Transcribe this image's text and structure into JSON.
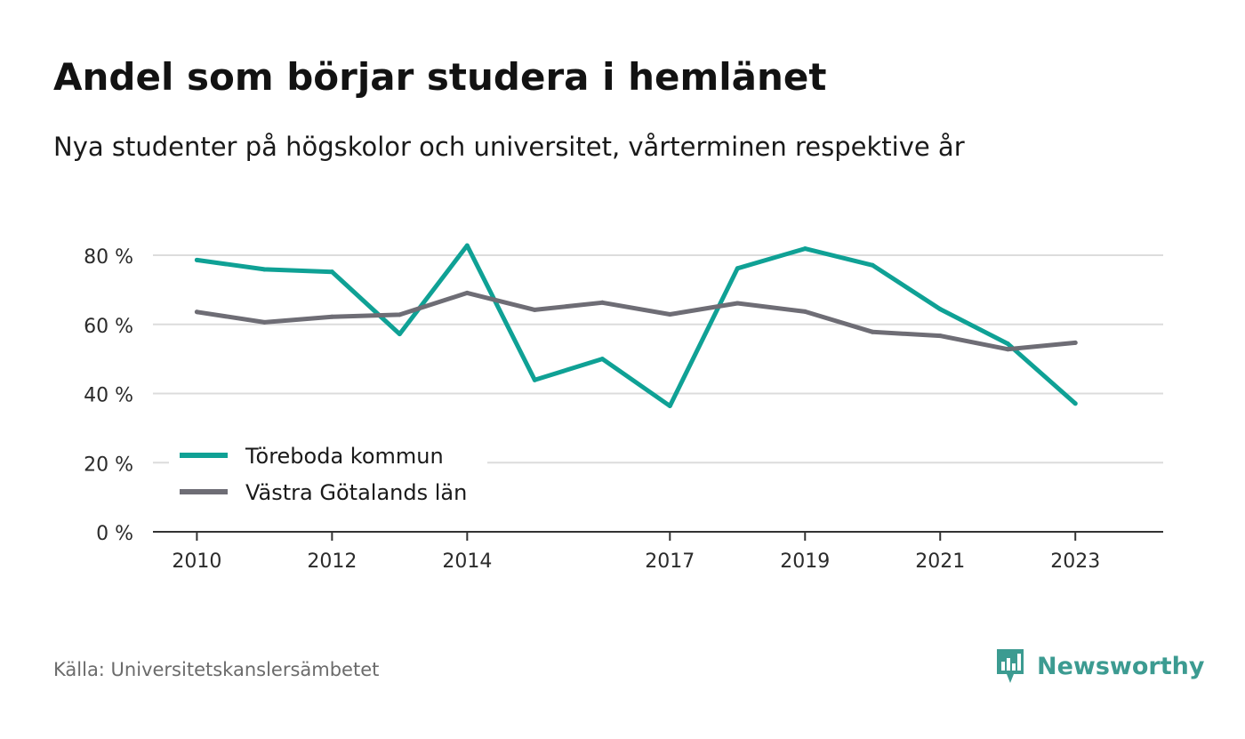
{
  "header": {
    "title": "Andel som börjar studera i hemlänet",
    "subtitle": "Nya studenter på högskolor och universitet, vårterminen respektive år"
  },
  "footer": {
    "source": "Källa: Universitetskanslersämbetet",
    "brand": "Newsworthy"
  },
  "colors": {
    "series_1": "#0fa195",
    "series_2": "#6e6d75",
    "grid": "#dcdcdc",
    "axis": "#333333",
    "brand": "#3c9b91"
  },
  "icons": {
    "brand": "newsworthy-logo-icon"
  },
  "chart_data": {
    "type": "line",
    "title": "Andel som börjar studera i hemlänet",
    "subtitle": "Nya studenter på högskolor och universitet, vårterminen respektive år",
    "xlabel": "",
    "ylabel": "",
    "x": [
      2010,
      2011,
      2012,
      2013,
      2014,
      2015,
      2016,
      2017,
      2018,
      2019,
      2020,
      2021,
      2022,
      2023
    ],
    "x_tick_labels": [
      "2010",
      "2012",
      "2014",
      "2017",
      "2019",
      "2021",
      "2023"
    ],
    "x_tick_values": [
      2010,
      2012,
      2014,
      2017,
      2019,
      2021,
      2023
    ],
    "xlim": [
      2009.35,
      2024.3
    ],
    "ylim": [
      0,
      80
    ],
    "y_ticks": [
      0,
      20,
      40,
      60,
      80
    ],
    "y_tick_labels": [
      "0 %",
      "20 %",
      "40 %",
      "60 %",
      "80 %"
    ],
    "grid": true,
    "legend_position": "bottom-left",
    "series": [
      {
        "name": "Töreboda kommun",
        "color": "#0fa195",
        "values": [
          78.6,
          75.9,
          75.2,
          57.2,
          82.8,
          43.9,
          50.0,
          36.4,
          76.2,
          81.9,
          77.1,
          64.4,
          54.4,
          37.1
        ]
      },
      {
        "name": "Västra Götalands län",
        "color": "#6e6d75",
        "values": [
          63.6,
          60.6,
          62.2,
          62.8,
          69.1,
          64.2,
          66.3,
          62.9,
          66.1,
          63.7,
          57.8,
          56.7,
          52.8,
          54.7
        ]
      }
    ]
  }
}
